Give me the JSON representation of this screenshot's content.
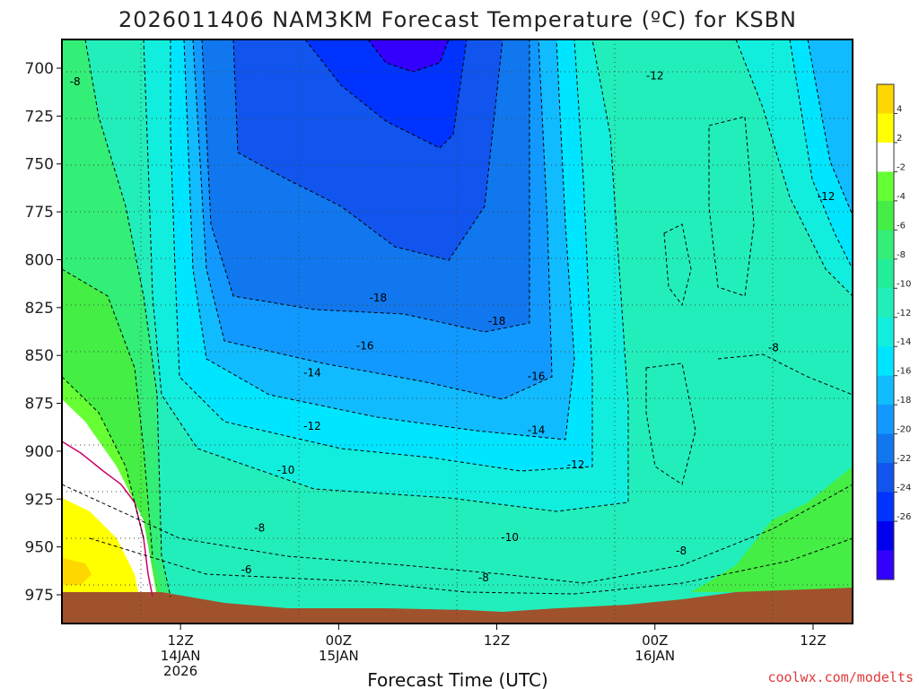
{
  "title": "2026011406 NAM3KM Forecast Temperature (ºC) for KSBN",
  "credit": "coolwx.com/modelts",
  "chart_data": {
    "type": "heatmap",
    "title": "2026011406 NAM3KM Forecast Temperature (ºC) for KSBN",
    "xlabel": "Forecast Time (UTC)",
    "ylabel": "",
    "y_ticks": [
      "700",
      "725",
      "750",
      "775",
      "800",
      "825",
      "850",
      "875",
      "900",
      "925",
      "950",
      "975"
    ],
    "y_values": [
      700,
      725,
      750,
      775,
      800,
      825,
      850,
      875,
      900,
      925,
      950,
      975
    ],
    "y_range": [
      685,
      990
    ],
    "x_range_hours": [
      -15,
      45
    ],
    "x_ticks": [
      {
        "hour": -6,
        "lines": [
          "12Z",
          "14JAN",
          "2026"
        ]
      },
      {
        "hour": 6,
        "lines": [
          "00Z",
          "15JAN"
        ]
      },
      {
        "hour": 18,
        "lines": [
          "12Z"
        ]
      },
      {
        "hour": 30,
        "lines": [
          "00Z",
          "16JAN"
        ]
      },
      {
        "hour": 42,
        "lines": [
          "12Z"
        ]
      }
    ],
    "grid": true,
    "colorbar": {
      "ticks": [
        "4",
        "2",
        "-2",
        "-4",
        "-6",
        "-8",
        "-10",
        "-12",
        "-14",
        "-16",
        "-18",
        "-20",
        "-22",
        "-24",
        "-26"
      ],
      "colors": [
        "#ffd700",
        "#ffff00",
        "#ffffff",
        "#66ff33",
        "#44ee44",
        "#33ee77",
        "#22ee99",
        "#22eebb",
        "#11eedd",
        "#00e5ff",
        "#11bbff",
        "#1199ff",
        "#1177ee",
        "#1155ee",
        "#0033ff",
        "#0000ee",
        "#3300ff"
      ]
    },
    "contour_labels": [
      {
        "text": "-8",
        "hour": -14,
        "p": 707
      },
      {
        "text": "-12",
        "hour": 30,
        "p": 704
      },
      {
        "text": "-12",
        "hour": 43,
        "p": 767
      },
      {
        "text": "-18",
        "hour": 9,
        "p": 820
      },
      {
        "text": "-18",
        "hour": 18,
        "p": 832
      },
      {
        "text": "-16",
        "hour": 8,
        "p": 845
      },
      {
        "text": "-16",
        "hour": 21,
        "p": 861
      },
      {
        "text": "-14",
        "hour": 4,
        "p": 859
      },
      {
        "text": "-14",
        "hour": 21,
        "p": 889
      },
      {
        "text": "-8",
        "hour": 39,
        "p": 846
      },
      {
        "text": "-12",
        "hour": 4,
        "p": 887
      },
      {
        "text": "-10",
        "hour": 2,
        "p": 910
      },
      {
        "text": "-12",
        "hour": 24,
        "p": 907
      },
      {
        "text": "-8",
        "hour": 0,
        "p": 940
      },
      {
        "text": "-10",
        "hour": 19,
        "p": 945
      },
      {
        "text": "-8",
        "hour": 32,
        "p": 952
      },
      {
        "text": "-6",
        "hour": -1,
        "p": 962
      },
      {
        "text": "-8",
        "hour": 17,
        "p": 966
      }
    ]
  }
}
